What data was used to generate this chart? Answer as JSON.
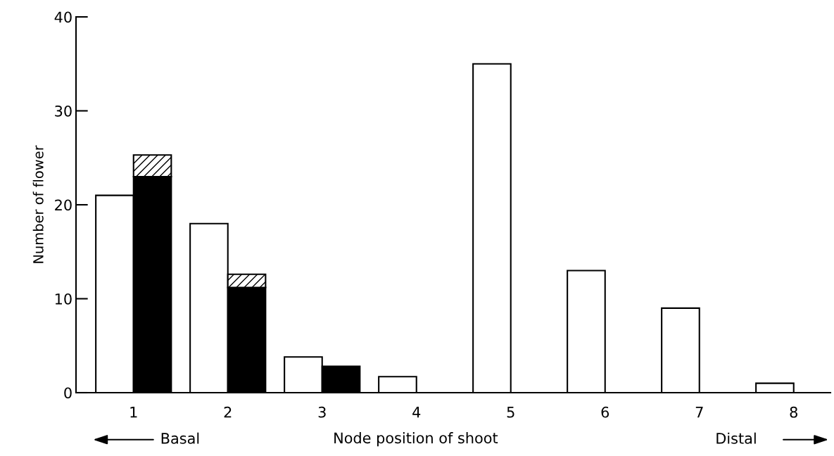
{
  "chart_data": {
    "type": "bar",
    "xlabel": "Node position of shoot",
    "ylabel": "Number of flower",
    "categories": [
      "1",
      "2",
      "3",
      "4",
      "5",
      "6",
      "7",
      "8"
    ],
    "series": [
      {
        "color": "#ffffff",
        "values": [
          21,
          18,
          3.8,
          1.7,
          35,
          13,
          9,
          1
        ]
      },
      {
        "color": "#000000",
        "values": [
          23,
          11.2,
          2.8,
          null,
          null,
          null,
          null,
          null
        ]
      },
      {
        "color": "#000000",
        "values": [
          2.3,
          1.4,
          null,
          null,
          null,
          null,
          null,
          null
        ],
        "base": [
          23,
          11.2,
          null,
          null,
          null,
          null,
          null,
          null
        ]
      }
    ],
    "ylim": [
      0,
      40
    ],
    "yticks": [
      0,
      10,
      20,
      30,
      40
    ],
    "annotations": [
      "Basal",
      "Distal"
    ],
    "grid": false,
    "legend": false
  }
}
